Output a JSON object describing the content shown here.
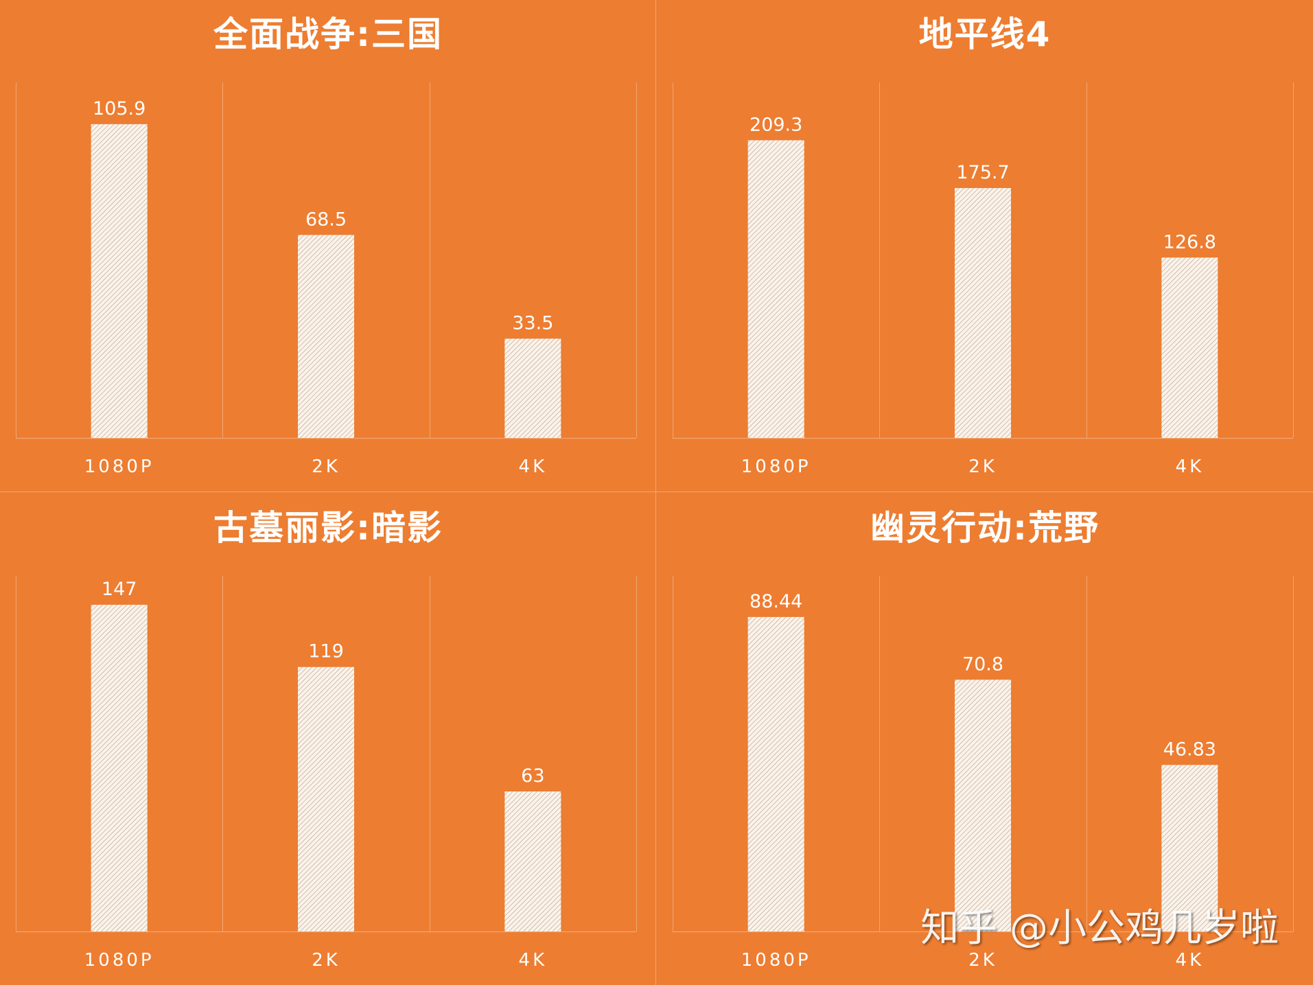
{
  "colors": {
    "background": "#ED7D31",
    "bar_fill": "#FBF3EA",
    "bar_hatch": "#B8A18F",
    "text": "#FFFFFF",
    "gridline": "#F2A772"
  },
  "watermark": "知乎 @小公鸡几岁啦",
  "chart_data": [
    {
      "type": "bar",
      "title": "全面战争:三国",
      "categories": [
        "1080P",
        "2K",
        "4K"
      ],
      "values": [
        105.9,
        68.5,
        33.5
      ],
      "value_labels": [
        "105.9",
        "68.5",
        "33.5"
      ],
      "ylim": [
        0,
        120
      ],
      "grid": "vertical category separators",
      "legend": "none"
    },
    {
      "type": "bar",
      "title": "地平线4",
      "categories": [
        "1080P",
        "2K",
        "4K"
      ],
      "values": [
        209.3,
        175.7,
        126.8
      ],
      "value_labels": [
        "209.3",
        "175.7",
        "126.8"
      ],
      "ylim": [
        0,
        250
      ],
      "grid": "vertical category separators",
      "legend": "none"
    },
    {
      "type": "bar",
      "title": "古墓丽影:暗影",
      "categories": [
        "1080P",
        "2K",
        "4K"
      ],
      "values": [
        147,
        119,
        63
      ],
      "value_labels": [
        "147",
        "119",
        "63"
      ],
      "ylim": [
        0,
        160
      ],
      "grid": "vertical category separators",
      "legend": "none"
    },
    {
      "type": "bar",
      "title": "幽灵行动:荒野",
      "categories": [
        "1080P",
        "2K",
        "4K"
      ],
      "values": [
        88.44,
        70.8,
        46.83
      ],
      "value_labels": [
        "88.44",
        "70.8",
        "46.83"
      ],
      "ylim": [
        0,
        100
      ],
      "grid": "vertical category separators",
      "legend": "none"
    }
  ]
}
